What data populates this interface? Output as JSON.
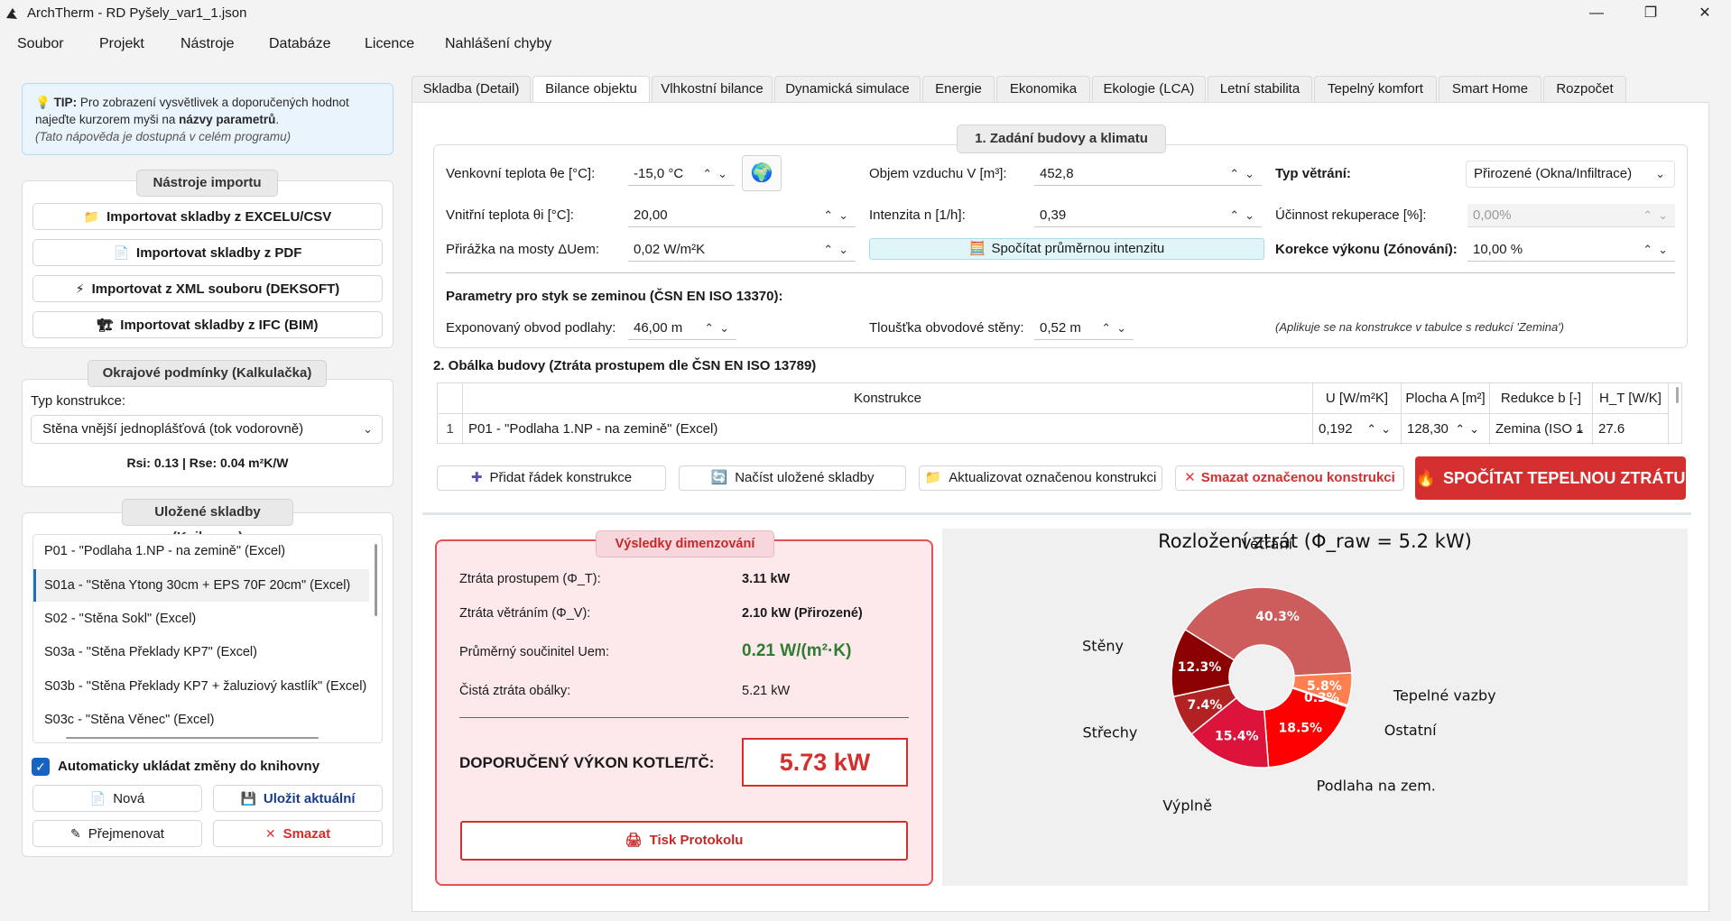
{
  "window": {
    "title": "ArchTherm - RD Pyšely_var1_1.json",
    "minimize": "—",
    "maximize": "❐",
    "close": "✕"
  },
  "menu": [
    "Soubor",
    "Projekt",
    "Nástroje",
    "Databáze",
    "Licence",
    "Nahlášení chyby"
  ],
  "tip": {
    "prefix": "💡 ",
    "label": "TIP:",
    "text1": " Pro zobrazení vysvětlivek a doporučených hodnot najeďte kurzorem myši na ",
    "bold": "názvy parametrů",
    "text2": ".",
    "note": "(Tato nápověda je dostupná v celém programu)"
  },
  "import": {
    "title": "Nástroje importu",
    "buttons": [
      {
        "icon": "📁",
        "label": "Importovat skladby z EXCELU/CSV"
      },
      {
        "icon": "📄",
        "label": "Importovat skladby z PDF"
      },
      {
        "icon": "⚡",
        "label": "Importovat z XML souboru (DEKSOFT)"
      },
      {
        "icon": "🏗",
        "label": "Importovat skladby z IFC (BIM)"
      }
    ]
  },
  "boundary": {
    "title": "Okrajové podmínky (Kalkulačka)",
    "type_label": "Typ konstrukce:",
    "type_value": "Stěna vnější jednoplášťová (tok vodorovně)",
    "rs": "Rsi: 0.13 | Rse: 0.04 m²K/W"
  },
  "library": {
    "title": "Uložené skladby (Knihovna)",
    "items": [
      "P01 - \"Podlaha 1.NP - na zemině\" (Excel)",
      "S01a - \"Stěna Ytong 30cm + EPS 70F 20cm\" (Excel)",
      "S02 - \"Stěna Sokl\" (Excel)",
      "S03a - \"Stěna Překlady KP7\" (Excel)",
      "S03b - \"Stěna Překlady KP7 + žaluziový kastlík\" (Excel)",
      "S03c - \"Stěna Věnec\" (Excel)"
    ],
    "autosave": "Automaticky ukládat změny do knihovny",
    "new_btn": "Nová",
    "save_btn": "Uložit aktuální",
    "rename_btn": "Přejmenovat",
    "delete_btn": "Smazat"
  },
  "tabs": [
    "Skladba (Detail)",
    "Bilance objektu",
    "Vlhkostní bilance",
    "Dynamická simulace",
    "Energie",
    "Ekonomika",
    "Ekologie (LCA)",
    "Letní stabilita",
    "Tepelný komfort",
    "Smart Home",
    "Rozpočet"
  ],
  "section1": {
    "title": "1. Zadání budovy a klimatu",
    "ext_temp_label": "Venkovní teplota θe [°C]:",
    "ext_temp_value": "-15,0 °C",
    "int_temp_label": "Vnitřní teplota θi [°C]:",
    "int_temp_value": "20,00",
    "bridge_label": "Přirážka na mosty ΔUem:",
    "bridge_value": "0,02 W/m²K",
    "volume_label": "Objem vzduchu V [m³]:",
    "volume_value": "452,8",
    "intensity_label": "Intenzita n [1/h]:",
    "intensity_value": "0,39",
    "calc_intensity_btn": "Spočítat průměrnou intenzitu",
    "vent_type_label": "Typ větrání:",
    "vent_type_value": "Přirozené (Okna/Infiltrace)",
    "recup_label": "Účinnost rekuperace [%]:",
    "recup_value": "0,00%",
    "correction_label": "Korekce výkonu (Zónování):",
    "correction_value": "10,00 %",
    "ground_title": "Parametry pro styk se zeminou (ČSN EN ISO 13370):",
    "perimeter_label": "Exponovaný obvod podlahy:",
    "perimeter_value": "46,00 m",
    "wall_thick_label": "Tloušťka obvodové stěny:",
    "wall_thick_value": "0,52 m",
    "ground_note": "(Aplikuje se na konstrukce v tabulce s redukcí 'Zemina')"
  },
  "section2": {
    "title": "2. Obálka budovy (Ztráta prostupem dle ČSN EN ISO 13789)",
    "headers": [
      "Konstrukce",
      "U [W/m²K]",
      "Plocha A [m²]",
      "Redukce b [-]",
      "H_T [W/K]"
    ],
    "rows": [
      {
        "num": "1",
        "construction": "P01 - \"Podlaha 1.NP - na zemině\" (Excel)",
        "u": "0,192",
        "area": "128,30",
        "reduction": "Zemina (ISO 1",
        "ht": "27.6"
      }
    ],
    "add_btn": "Přidat řádek konstrukce",
    "load_btn": "Načíst uložené skladby",
    "update_btn": "Aktualizovat označenou konstrukci",
    "delete_btn": "Smazat označenou konstrukci",
    "calc_btn": "SPOČÍTAT TEPELNOU ZTRÁTU"
  },
  "results": {
    "title": "Výsledky dimenzování",
    "transmission_label": "Ztráta prostupem (Φ_T):",
    "transmission_value": "3.11 kW",
    "ventilation_label": "Ztráta větráním (Φ_V):",
    "ventilation_value": "2.10 kW (Přirozené)",
    "uem_label": "Průměrný součinitel Uem:",
    "uem_value": "0.21 W/(m²·K)",
    "net_label": "Čistá ztráta obálky:",
    "net_value": "5.21 kW",
    "recommended_label": "DOPORUČENÝ VÝKON KOTLE/TČ:",
    "recommended_value": "5.73 kW",
    "print_btn": "Tisk Protokolu"
  },
  "chart_data": {
    "type": "pie",
    "title": "Rozložení ztrát (Φ_raw = 5.2 kW)",
    "donut": true,
    "series": [
      {
        "name": "Větrání",
        "value": 40.3,
        "label": "40.3%",
        "color": "#cd5c5c"
      },
      {
        "name": "Tepelné vazby",
        "value": 5.8,
        "label": "5.8%",
        "color": "#ff7f50"
      },
      {
        "name": "Ostatní",
        "value": 0.3,
        "label": "0.3%",
        "color": "#ffa07a"
      },
      {
        "name": "Podlaha na zem.",
        "value": 18.5,
        "label": "18.5%",
        "color": "#ff0000"
      },
      {
        "name": "Výplně",
        "value": 15.4,
        "label": "15.4%",
        "color": "#dc143c"
      },
      {
        "name": "Střechy",
        "value": 7.4,
        "label": "7.4%",
        "color": "#b22222"
      },
      {
        "name": "Stěny",
        "value": 12.3,
        "label": "12.3%",
        "color": "#8b0000"
      }
    ]
  }
}
